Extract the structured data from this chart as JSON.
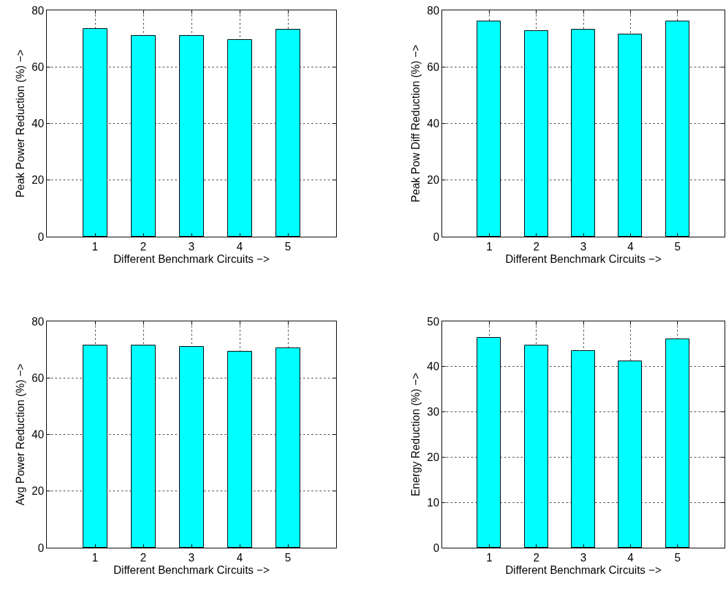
{
  "chart_data": [
    {
      "type": "bar",
      "x": [
        1,
        2,
        3,
        4,
        5
      ],
      "values": [
        73.5,
        71.1,
        71.0,
        69.5,
        73.3
      ],
      "color": "#00ffff",
      "xlabel": "Different Benchmark Circuits −>",
      "ylabel": "Peak Power Reduction (%) −>",
      "xlim": [
        0,
        6
      ],
      "xticks": [
        1,
        2,
        3,
        4,
        5
      ],
      "ylim": [
        0,
        80
      ],
      "yticks": [
        0,
        20,
        40,
        60,
        80
      ],
      "grid": true
    },
    {
      "type": "bar",
      "x": [
        1,
        2,
        3,
        4,
        5
      ],
      "values": [
        76.2,
        72.7,
        73.1,
        71.6,
        76.1
      ],
      "color": "#00ffff",
      "xlabel": "Different Benchmark Circuits −>",
      "ylabel": "Peak Pow Diff Reduction (%) −>",
      "xlim": [
        0,
        6
      ],
      "xticks": [
        1,
        2,
        3,
        4,
        5
      ],
      "ylim": [
        0,
        80
      ],
      "yticks": [
        0,
        20,
        40,
        60,
        80
      ],
      "grid": true
    },
    {
      "type": "bar",
      "x": [
        1,
        2,
        3,
        4,
        5
      ],
      "values": [
        71.6,
        71.4,
        71.0,
        69.3,
        70.4
      ],
      "color": "#00ffff",
      "xlabel": "Different Benchmark Circuits −>",
      "ylabel": "Avg Power Reduction (%) −>",
      "xlim": [
        0,
        6
      ],
      "xticks": [
        1,
        2,
        3,
        4,
        5
      ],
      "ylim": [
        0,
        80
      ],
      "yticks": [
        0,
        20,
        40,
        60,
        80
      ],
      "grid": true
    },
    {
      "type": "bar",
      "x": [
        1,
        2,
        3,
        4,
        5
      ],
      "values": [
        46.3,
        44.7,
        43.4,
        41.2,
        46.0
      ],
      "color": "#00ffff",
      "xlabel": "Different Benchmark Circuits −>",
      "ylabel": "Energy Reduction (%) −>",
      "xlim": [
        0,
        6
      ],
      "xticks": [
        1,
        2,
        3,
        4,
        5
      ],
      "ylim": [
        0,
        50
      ],
      "yticks": [
        0,
        10,
        20,
        30,
        40,
        50
      ],
      "grid": true
    }
  ]
}
